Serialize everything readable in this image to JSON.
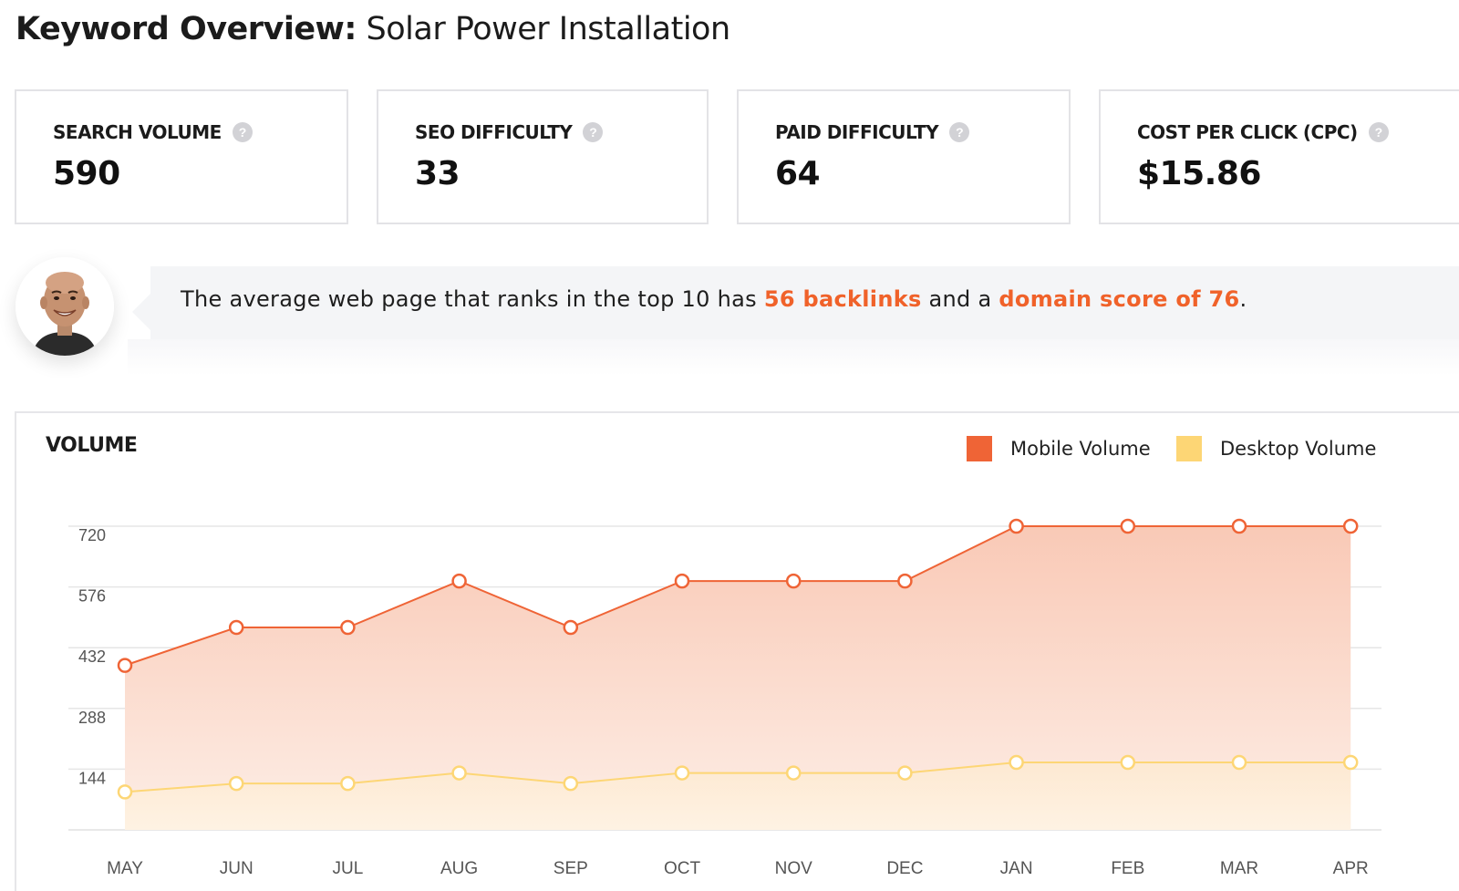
{
  "header": {
    "title_bold": "Keyword Overview:",
    "title_keyword": "Solar Power Installation"
  },
  "metrics": [
    {
      "label": "SEARCH VOLUME",
      "value": "590",
      "help_icon": "question-circle-icon"
    },
    {
      "label": "SEO DIFFICULTY",
      "value": "33",
      "help_icon": "question-circle-icon"
    },
    {
      "label": "PAID DIFFICULTY",
      "value": "64",
      "help_icon": "question-circle-icon"
    },
    {
      "label": "COST PER CLICK (CPC)",
      "value": "$15.86",
      "help_icon": "question-circle-icon"
    }
  ],
  "insight": {
    "prefix": "The average web page that ranks in the top 10 has ",
    "backlinks": "56 backlinks",
    "middle": " and a ",
    "domain_score": "domain score of 76",
    "suffix": "."
  },
  "colors": {
    "accent": "#f0622a",
    "mobile": "#ef6436",
    "desktop": "#fdd675",
    "border": "#e3e3e6"
  },
  "chart_data": {
    "type": "area",
    "title": "VOLUME",
    "categories": [
      "MAY",
      "JUN",
      "JUL",
      "AUG",
      "SEP",
      "OCT",
      "NOV",
      "DEC",
      "JAN",
      "FEB",
      "MAR",
      "APR"
    ],
    "yticks": [
      144,
      288,
      432,
      576,
      720
    ],
    "ylim": [
      0,
      720
    ],
    "grid": true,
    "legend_position": "top-right",
    "series": [
      {
        "name": "Mobile Volume",
        "color": "#ef6436",
        "values": [
          390,
          480,
          480,
          590,
          480,
          590,
          590,
          590,
          720,
          720,
          720,
          720
        ]
      },
      {
        "name": "Desktop Volume",
        "color": "#fdd675",
        "values": [
          90,
          110,
          110,
          135,
          110,
          135,
          135,
          135,
          160,
          160,
          160,
          160
        ]
      }
    ]
  }
}
